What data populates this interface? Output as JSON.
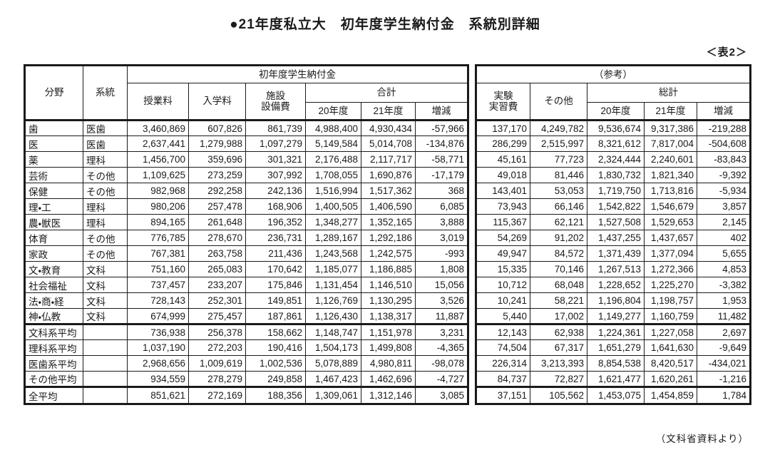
{
  "page": {
    "title": "●21年度私立大　初年度学生納付金　系統別詳細",
    "table_label": "＜表2＞",
    "source_note": "（文科省資料より）"
  },
  "left_table": {
    "header": {
      "field": "分野",
      "system": "系統",
      "group": "初年度学生納付金",
      "tuition": "授業料",
      "admission": "入学料",
      "facility_line1": "施設",
      "facility_line2": "設備費",
      "total": "合計",
      "y20": "20年度",
      "y21": "21年度",
      "change": "増減"
    }
  },
  "right_table": {
    "header": {
      "group": "（参考）",
      "lab_line1": "実験",
      "lab_line2": "実習費",
      "other": "その他",
      "grand_total": "総計",
      "y20": "20年度",
      "y21": "21年度",
      "change": "増減"
    }
  },
  "rows": [
    {
      "field": "歯",
      "system": "医歯",
      "tuition": "3,460,869",
      "admission": "607,826",
      "facility": "861,739",
      "total20": "4,988,400",
      "total21": "4,930,434",
      "change": "-57,966",
      "lab": "137,170",
      "other": "4,249,782",
      "grand20": "9,536,674",
      "grand21": "9,317,386",
      "gchange": "-219,288"
    },
    {
      "field": "医",
      "system": "医歯",
      "tuition": "2,637,441",
      "admission": "1,279,988",
      "facility": "1,097,279",
      "total20": "5,149,584",
      "total21": "5,014,708",
      "change": "-134,876",
      "lab": "286,299",
      "other": "2,515,997",
      "grand20": "8,321,612",
      "grand21": "7,817,004",
      "gchange": "-504,608"
    },
    {
      "field": "薬",
      "system": "理科",
      "tuition": "1,456,700",
      "admission": "359,696",
      "facility": "301,321",
      "total20": "2,176,488",
      "total21": "2,117,717",
      "change": "-58,771",
      "lab": "45,161",
      "other": "77,723",
      "grand20": "2,324,444",
      "grand21": "2,240,601",
      "gchange": "-83,843"
    },
    {
      "field": "芸術",
      "system": "その他",
      "tuition": "1,109,625",
      "admission": "273,259",
      "facility": "307,992",
      "total20": "1,708,055",
      "total21": "1,690,876",
      "change": "-17,179",
      "lab": "49,018",
      "other": "81,446",
      "grand20": "1,830,732",
      "grand21": "1,821,340",
      "gchange": "-9,392"
    },
    {
      "field": "保健",
      "system": "その他",
      "tuition": "982,968",
      "admission": "292,258",
      "facility": "242,136",
      "total20": "1,516,994",
      "total21": "1,517,362",
      "change": "368",
      "lab": "143,401",
      "other": "53,053",
      "grand20": "1,719,750",
      "grand21": "1,713,816",
      "gchange": "-5,934"
    },
    {
      "field": "理・工",
      "system": "理科",
      "tuition": "980,206",
      "admission": "257,478",
      "facility": "168,906",
      "total20": "1,400,505",
      "total21": "1,406,590",
      "change": "6,085",
      "lab": "73,943",
      "other": "66,146",
      "grand20": "1,542,822",
      "grand21": "1,546,679",
      "gchange": "3,857"
    },
    {
      "field": "農・獣医",
      "system": "理科",
      "tuition": "894,165",
      "admission": "261,648",
      "facility": "196,352",
      "total20": "1,348,277",
      "total21": "1,352,165",
      "change": "3,888",
      "lab": "115,367",
      "other": "62,121",
      "grand20": "1,527,508",
      "grand21": "1,529,653",
      "gchange": "2,145"
    },
    {
      "field": "体育",
      "system": "その他",
      "tuition": "776,785",
      "admission": "278,670",
      "facility": "236,731",
      "total20": "1,289,167",
      "total21": "1,292,186",
      "change": "3,019",
      "lab": "54,269",
      "other": "91,202",
      "grand20": "1,437,255",
      "grand21": "1,437,657",
      "gchange": "402"
    },
    {
      "field": "家政",
      "system": "その他",
      "tuition": "767,381",
      "admission": "263,758",
      "facility": "211,436",
      "total20": "1,243,568",
      "total21": "1,242,575",
      "change": "-993",
      "lab": "49,947",
      "other": "84,572",
      "grand20": "1,371,439",
      "grand21": "1,377,094",
      "gchange": "5,655"
    },
    {
      "field": "文・教育",
      "system": "文科",
      "tuition": "751,160",
      "admission": "265,083",
      "facility": "170,642",
      "total20": "1,185,077",
      "total21": "1,186,885",
      "change": "1,808",
      "lab": "15,335",
      "other": "70,146",
      "grand20": "1,267,513",
      "grand21": "1,272,366",
      "gchange": "4,853"
    },
    {
      "field": "社会福祉",
      "system": "文科",
      "tuition": "737,457",
      "admission": "233,207",
      "facility": "175,846",
      "total20": "1,131,454",
      "total21": "1,146,510",
      "change": "15,056",
      "lab": "10,712",
      "other": "68,048",
      "grand20": "1,228,652",
      "grand21": "1,225,270",
      "gchange": "-3,382"
    },
    {
      "field": "法・商・経",
      "system": "文科",
      "tuition": "728,143",
      "admission": "252,301",
      "facility": "149,851",
      "total20": "1,126,769",
      "total21": "1,130,295",
      "change": "3,526",
      "lab": "10,241",
      "other": "58,221",
      "grand20": "1,196,804",
      "grand21": "1,198,757",
      "gchange": "1,953"
    },
    {
      "field": "神・仏教",
      "system": "文科",
      "tuition": "674,999",
      "admission": "275,457",
      "facility": "187,861",
      "total20": "1,126,430",
      "total21": "1,138,317",
      "change": "11,887",
      "lab": "5,440",
      "other": "17,002",
      "grand20": "1,149,277",
      "grand21": "1,160,759",
      "gchange": "11,482"
    }
  ],
  "summary_rows": [
    {
      "field": "文科系平均",
      "system": "",
      "tuition": "736,938",
      "admission": "256,378",
      "facility": "158,662",
      "total20": "1,148,747",
      "total21": "1,151,978",
      "change": "3,231",
      "lab": "12,143",
      "other": "62,938",
      "grand20": "1,224,361",
      "grand21": "1,227,058",
      "gchange": "2,697"
    },
    {
      "field": "理科系平均",
      "system": "",
      "tuition": "1,037,190",
      "admission": "272,203",
      "facility": "190,416",
      "total20": "1,504,173",
      "total21": "1,499,808",
      "change": "-4,365",
      "lab": "74,504",
      "other": "67,317",
      "grand20": "1,651,279",
      "grand21": "1,641,630",
      "gchange": "-9,649"
    },
    {
      "field": "医歯系平均",
      "system": "",
      "tuition": "2,968,656",
      "admission": "1,009,619",
      "facility": "1,002,536",
      "total20": "5,078,889",
      "total21": "4,980,811",
      "change": "-98,078",
      "lab": "226,314",
      "other": "3,213,393",
      "grand20": "8,854,538",
      "grand21": "8,420,517",
      "gchange": "-434,021"
    },
    {
      "field": "その他平均",
      "system": "",
      "tuition": "934,559",
      "admission": "278,279",
      "facility": "249,858",
      "total20": "1,467,423",
      "total21": "1,462,696",
      "change": "-4,727",
      "lab": "84,737",
      "other": "72,827",
      "grand20": "1,621,477",
      "grand21": "1,620,261",
      "gchange": "-1,216"
    }
  ],
  "total_rows": [
    {
      "field": "全平均",
      "system": "",
      "tuition": "851,621",
      "admission": "272,169",
      "facility": "188,356",
      "total20": "1,309,061",
      "total21": "1,312,146",
      "change": "3,085",
      "lab": "37,151",
      "other": "105,562",
      "grand20": "1,453,075",
      "grand21": "1,454,859",
      "gchange": "1,784"
    }
  ]
}
